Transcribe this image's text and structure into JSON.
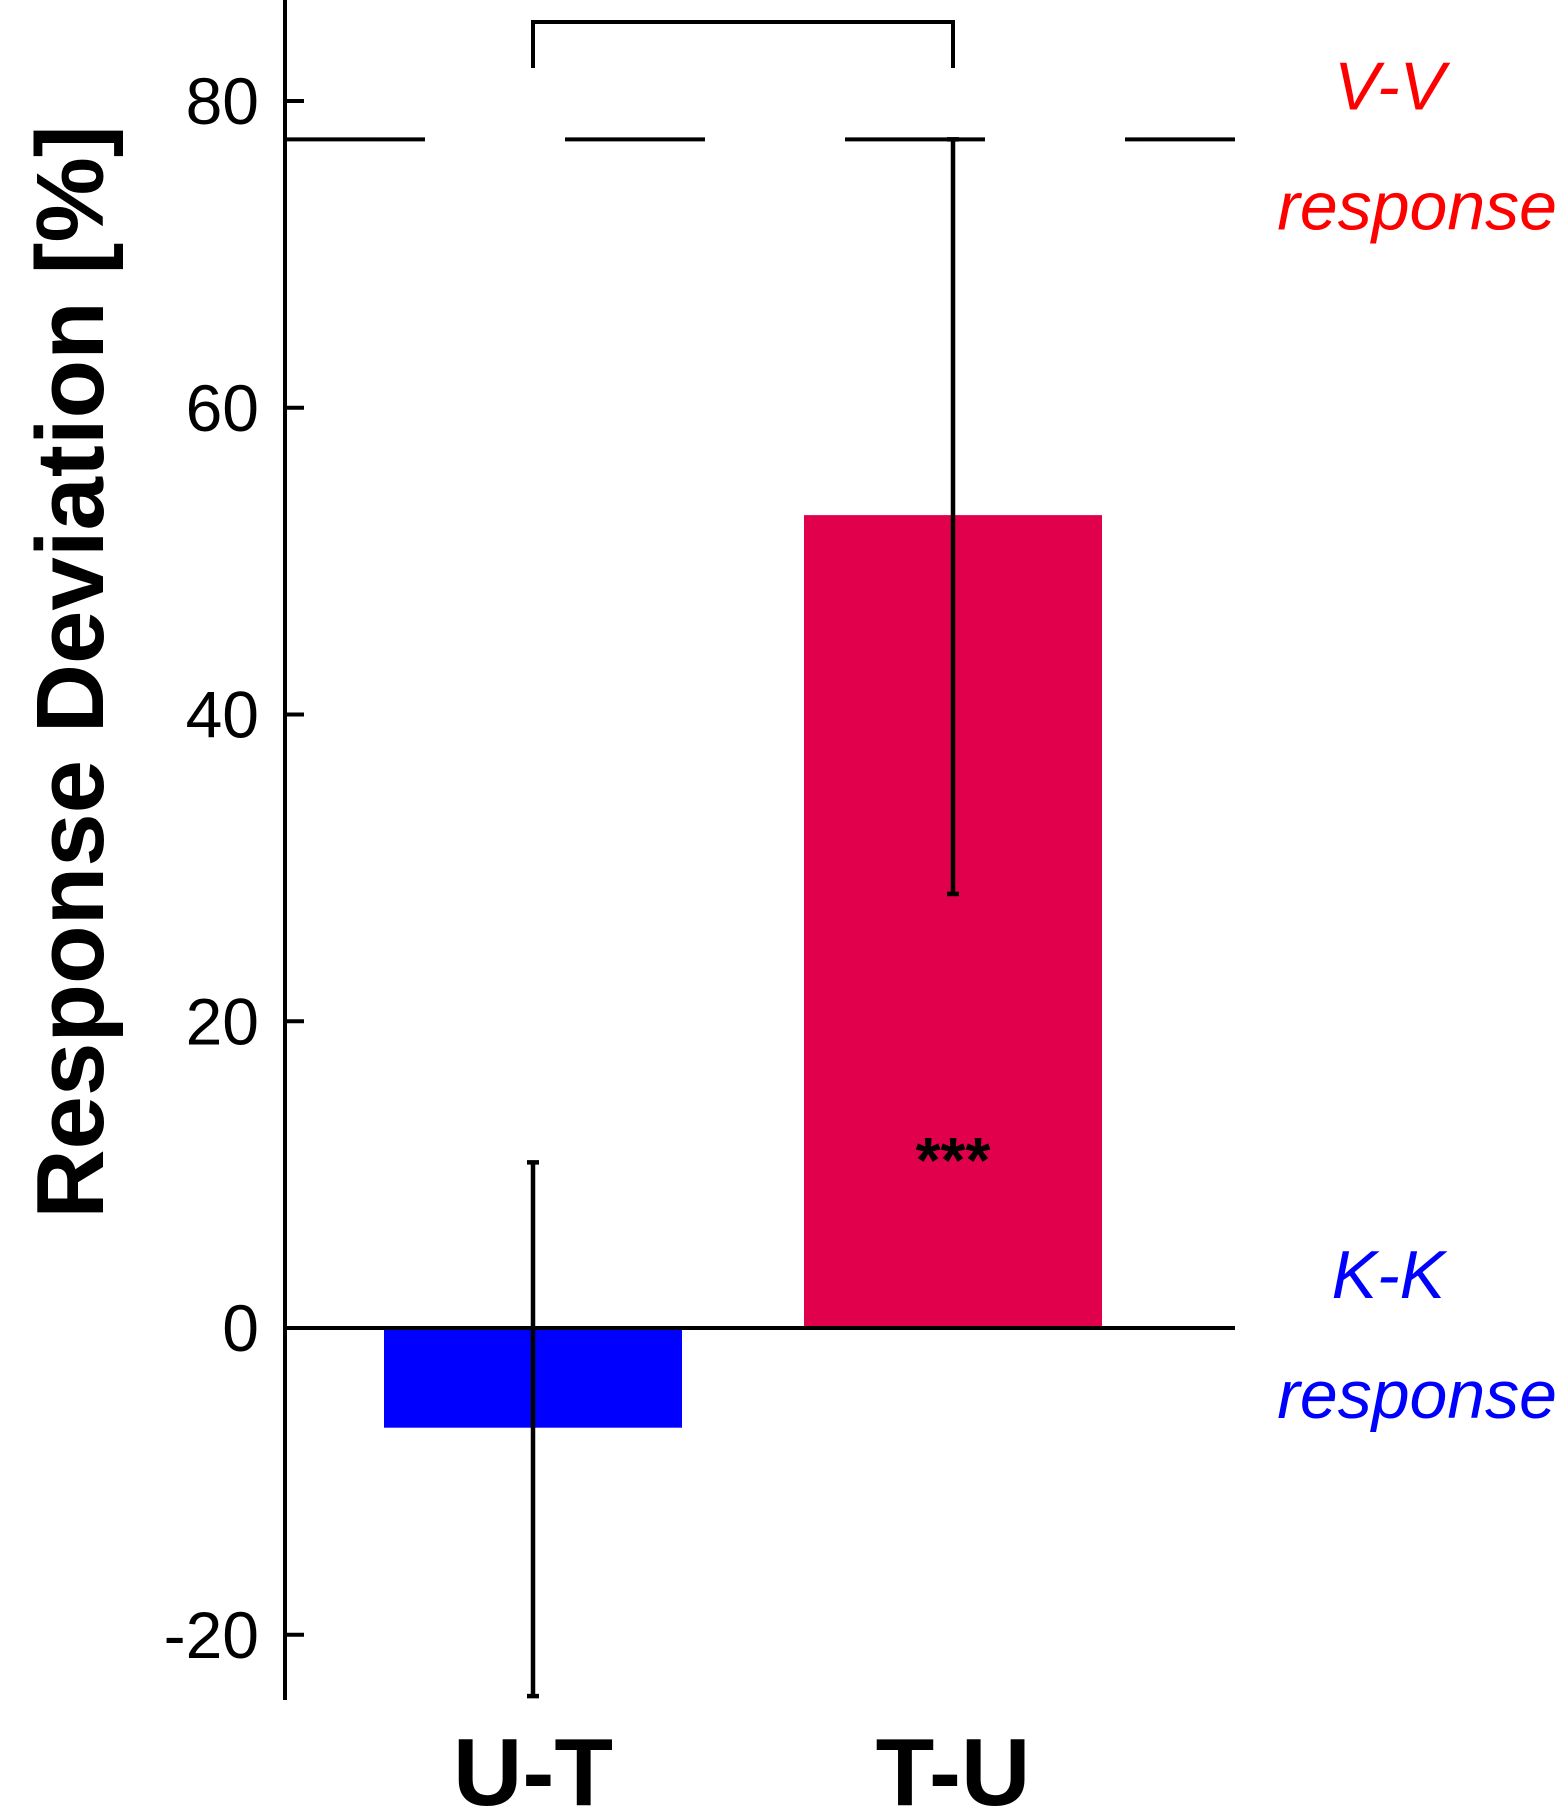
{
  "chart_data": {
    "type": "bar",
    "categories": [
      "U-T",
      "T-U"
    ],
    "values": [
      -6.5,
      53
    ],
    "error_bars": [
      {
        "upper": 10.8,
        "lower": -24
      },
      {
        "upper": 77.5,
        "lower": 28.3
      }
    ],
    "bar_colors": [
      "#0000ff",
      "#e0004c"
    ],
    "xlabel": "",
    "ylabel": "Response Deviation [%]",
    "ylim": [
      -24,
      85
    ],
    "yticks": [
      -20,
      0,
      20,
      40,
      60,
      80
    ],
    "reference_lines": [
      {
        "value": 77.5,
        "style": "dashed",
        "label_line1": "V-V",
        "label_line2": "response",
        "color": "#ff0000"
      },
      {
        "value": 0,
        "style": "solid",
        "label_line1": "K-K",
        "label_line2": "response",
        "color": "#0000ff"
      }
    ],
    "annotations": {
      "bar_significance": [
        {
          "category": "T-U",
          "text": "***",
          "y": 12
        }
      ],
      "bracket": {
        "from": "U-T",
        "to": "T-U"
      }
    },
    "grid": false,
    "legend": "none"
  }
}
